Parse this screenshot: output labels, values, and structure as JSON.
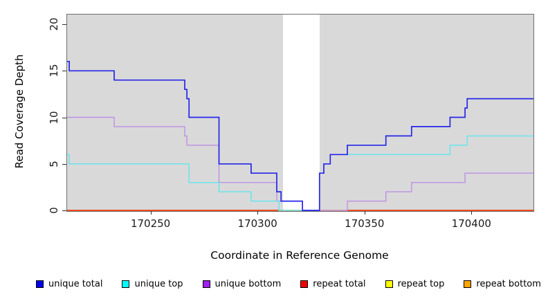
{
  "chart_data": {
    "type": "line",
    "subtype": "step",
    "title": "",
    "xlabel": "Coordinate in Reference Genome",
    "ylabel": "Read Coverage Depth",
    "xlim": [
      170211,
      170429
    ],
    "ylim": [
      0,
      21
    ],
    "x_ticks": [
      "170250",
      "170300",
      "170350",
      "170400"
    ],
    "x_tick_values": [
      170250,
      170300,
      170350,
      170400
    ],
    "y_ticks": [
      "0",
      "5",
      "10",
      "15",
      "20"
    ],
    "y_tick_values": [
      0,
      5,
      10,
      15,
      20
    ],
    "grid": false,
    "legend_position": "bottom",
    "plot_bg_color": "#d9d9d9",
    "gap_band": {
      "x_start": 170312,
      "x_end": 170329,
      "color": "#ffffff"
    },
    "series": [
      {
        "name": "unique total",
        "line_color": "#2626e8",
        "legend_color": "#0000ee",
        "line_width": 1.7,
        "step_points": [
          [
            170211,
            16
          ],
          [
            170212,
            15
          ],
          [
            170233,
            14
          ],
          [
            170266,
            13
          ],
          [
            170267,
            12
          ],
          [
            170268,
            10
          ],
          [
            170282,
            5
          ],
          [
            170297,
            4
          ],
          [
            170309,
            2
          ],
          [
            170311,
            1
          ],
          [
            170321,
            0
          ],
          [
            170329,
            4
          ],
          [
            170331,
            5
          ],
          [
            170334,
            6
          ],
          [
            170342,
            7
          ],
          [
            170360,
            8
          ],
          [
            170372,
            9
          ],
          [
            170390,
            10
          ],
          [
            170397,
            11
          ],
          [
            170398,
            12
          ],
          [
            170429,
            12
          ]
        ]
      },
      {
        "name": "unique top",
        "line_color": "#5fe6ee",
        "legend_color": "#00ffff",
        "line_width": 1.4,
        "step_points": [
          [
            170211,
            6
          ],
          [
            170212,
            5
          ],
          [
            170268,
            3
          ],
          [
            170282,
            2
          ],
          [
            170297,
            1
          ],
          [
            170310,
            0
          ],
          [
            170329,
            4
          ],
          [
            170331,
            5
          ],
          [
            170334,
            6
          ],
          [
            170390,
            7
          ],
          [
            170398,
            8
          ],
          [
            170429,
            8
          ]
        ]
      },
      {
        "name": "unique bottom",
        "line_color": "#bd90e4",
        "legend_color": "#a020f0",
        "line_width": 1.4,
        "step_points": [
          [
            170211,
            10
          ],
          [
            170233,
            9
          ],
          [
            170266,
            8
          ],
          [
            170267,
            7
          ],
          [
            170282,
            3
          ],
          [
            170309,
            1
          ],
          [
            170321,
            0
          ],
          [
            170342,
            1
          ],
          [
            170360,
            2
          ],
          [
            170372,
            3
          ],
          [
            170397,
            4
          ],
          [
            170429,
            4
          ]
        ]
      },
      {
        "name": "repeat total",
        "line_color": "#ee0000",
        "legend_color": "#ee0000",
        "line_width": 1.2,
        "step_points": [
          [
            170211,
            0
          ],
          [
            170429,
            0
          ]
        ]
      },
      {
        "name": "repeat top",
        "line_color": "#ffff00",
        "legend_color": "#ffff00",
        "line_width": 1.2,
        "step_points": [
          [
            170211,
            0
          ],
          [
            170429,
            0
          ]
        ]
      },
      {
        "name": "repeat bottom",
        "line_color": "#ffa11e",
        "legend_color": "#ffa500",
        "line_width": 1.6,
        "step_points": [
          [
            170211,
            0
          ],
          [
            170429,
            0
          ]
        ]
      }
    ]
  }
}
